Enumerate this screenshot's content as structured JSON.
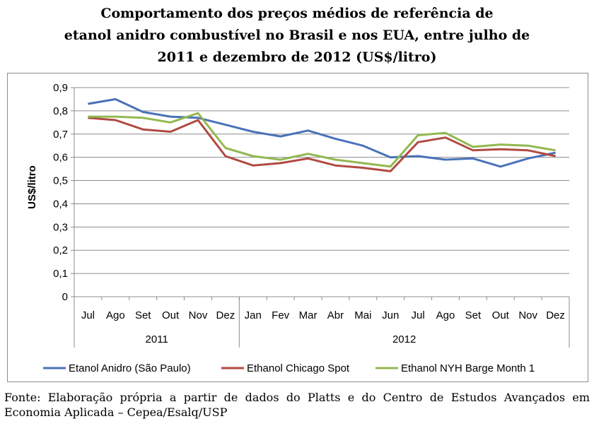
{
  "chart_data": {
    "type": "line",
    "title_lines": [
      "Comportamento dos preços médios de referência de",
      "etanol anidro combustível no Brasil e nos EUA, entre julho de",
      "2011 e dezembro de 2012 (US$/litro)"
    ],
    "ylabel": "US$/litro",
    "ylim": [
      0,
      0.9
    ],
    "yticks": [
      "0",
      "0,1",
      "0,2",
      "0,3",
      "0,4",
      "0,5",
      "0,6",
      "0,7",
      "0,8",
      "0,9"
    ],
    "categories": [
      "Jul",
      "Ago",
      "Set",
      "Out",
      "Nov",
      "Dez",
      "Jan",
      "Fev",
      "Mar",
      "Abr",
      "Mai",
      "Jun",
      "Jul",
      "Ago",
      "Set",
      "Out",
      "Nov",
      "Dez"
    ],
    "groups": [
      {
        "label": "2011",
        "count": 6
      },
      {
        "label": "2012",
        "count": 12
      }
    ],
    "grid": true,
    "legend_position": "bottom",
    "series": [
      {
        "name": "Etanol Anidro (São Paulo)",
        "color": "#4a72b8",
        "values": [
          0.83,
          0.85,
          0.795,
          0.775,
          0.77,
          0.74,
          0.71,
          0.69,
          0.715,
          0.68,
          0.65,
          0.6,
          0.605,
          0.59,
          0.595,
          0.56,
          0.595,
          0.62
        ]
      },
      {
        "name": "Ethanol Chicago Spot",
        "color": "#b04a42",
        "values": [
          0.77,
          0.76,
          0.72,
          0.71,
          0.76,
          0.605,
          0.565,
          0.575,
          0.595,
          0.565,
          0.555,
          0.54,
          0.665,
          0.685,
          0.63,
          0.635,
          0.63,
          0.605
        ]
      },
      {
        "name": "Ethanol NYH Barge Month 1",
        "color": "#93b850",
        "values": [
          0.775,
          0.775,
          0.77,
          0.75,
          0.79,
          0.64,
          0.605,
          0.59,
          0.615,
          0.59,
          0.575,
          0.56,
          0.695,
          0.705,
          0.645,
          0.655,
          0.65,
          0.63
        ]
      }
    ]
  },
  "source_text": "Fonte: Elaboração própria a partir de dados do Platts e do Centro de Estudos Avançados em Economia Aplicada – Cepea/Esalq/USP"
}
